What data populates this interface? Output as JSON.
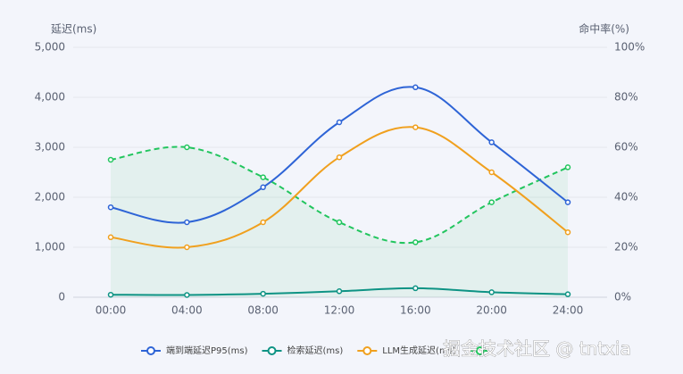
{
  "chart_data": {
    "type": "line",
    "y_title": "延迟(ms)",
    "y2_title": "命中率(%)",
    "categories": [
      "00:00",
      "04:00",
      "08:00",
      "12:00",
      "16:00",
      "20:00",
      "24:00"
    ],
    "ylim": [
      0,
      5000
    ],
    "yticks": [
      0,
      {
        "value": 1000,
        "label": "1,000"
      },
      {
        "value": 2000,
        "label": "2,000"
      },
      {
        "value": 3000,
        "label": "3,000"
      },
      {
        "value": 4000,
        "label": "4,000"
      },
      {
        "value": 5000,
        "label": "5,000"
      }
    ],
    "y2lim": [
      0,
      100
    ],
    "y2ticks": [
      {
        "value": 0,
        "label": "0%"
      },
      {
        "value": 20,
        "label": "20%"
      },
      {
        "value": 40,
        "label": "40%"
      },
      {
        "value": 60,
        "label": "60%"
      },
      {
        "value": 80,
        "label": "80%"
      },
      {
        "value": 100,
        "label": "100%"
      }
    ],
    "grid": true,
    "legend": "bottom",
    "series": [
      {
        "name": "端到端延迟P95(ms)",
        "color": "#2e64d6",
        "values": [
          1800,
          1500,
          2200,
          3500,
          4200,
          3100,
          1900
        ]
      },
      {
        "name": "检索延迟(ms)",
        "color": "#0e9384",
        "values": [
          50,
          45,
          70,
          120,
          180,
          100,
          60
        ]
      },
      {
        "name": "LLM生成延迟(ms)",
        "color": "#f0a01e",
        "values": [
          1200,
          1000,
          1500,
          2800,
          3400,
          2500,
          1300
        ]
      },
      {
        "color": "#22c55e",
        "axis": "y2",
        "dashed": true,
        "area": true,
        "values": [
          55,
          60,
          48,
          30,
          22,
          38,
          52
        ]
      }
    ],
    "watermark": "掘金技术社区 @ tntxia"
  }
}
